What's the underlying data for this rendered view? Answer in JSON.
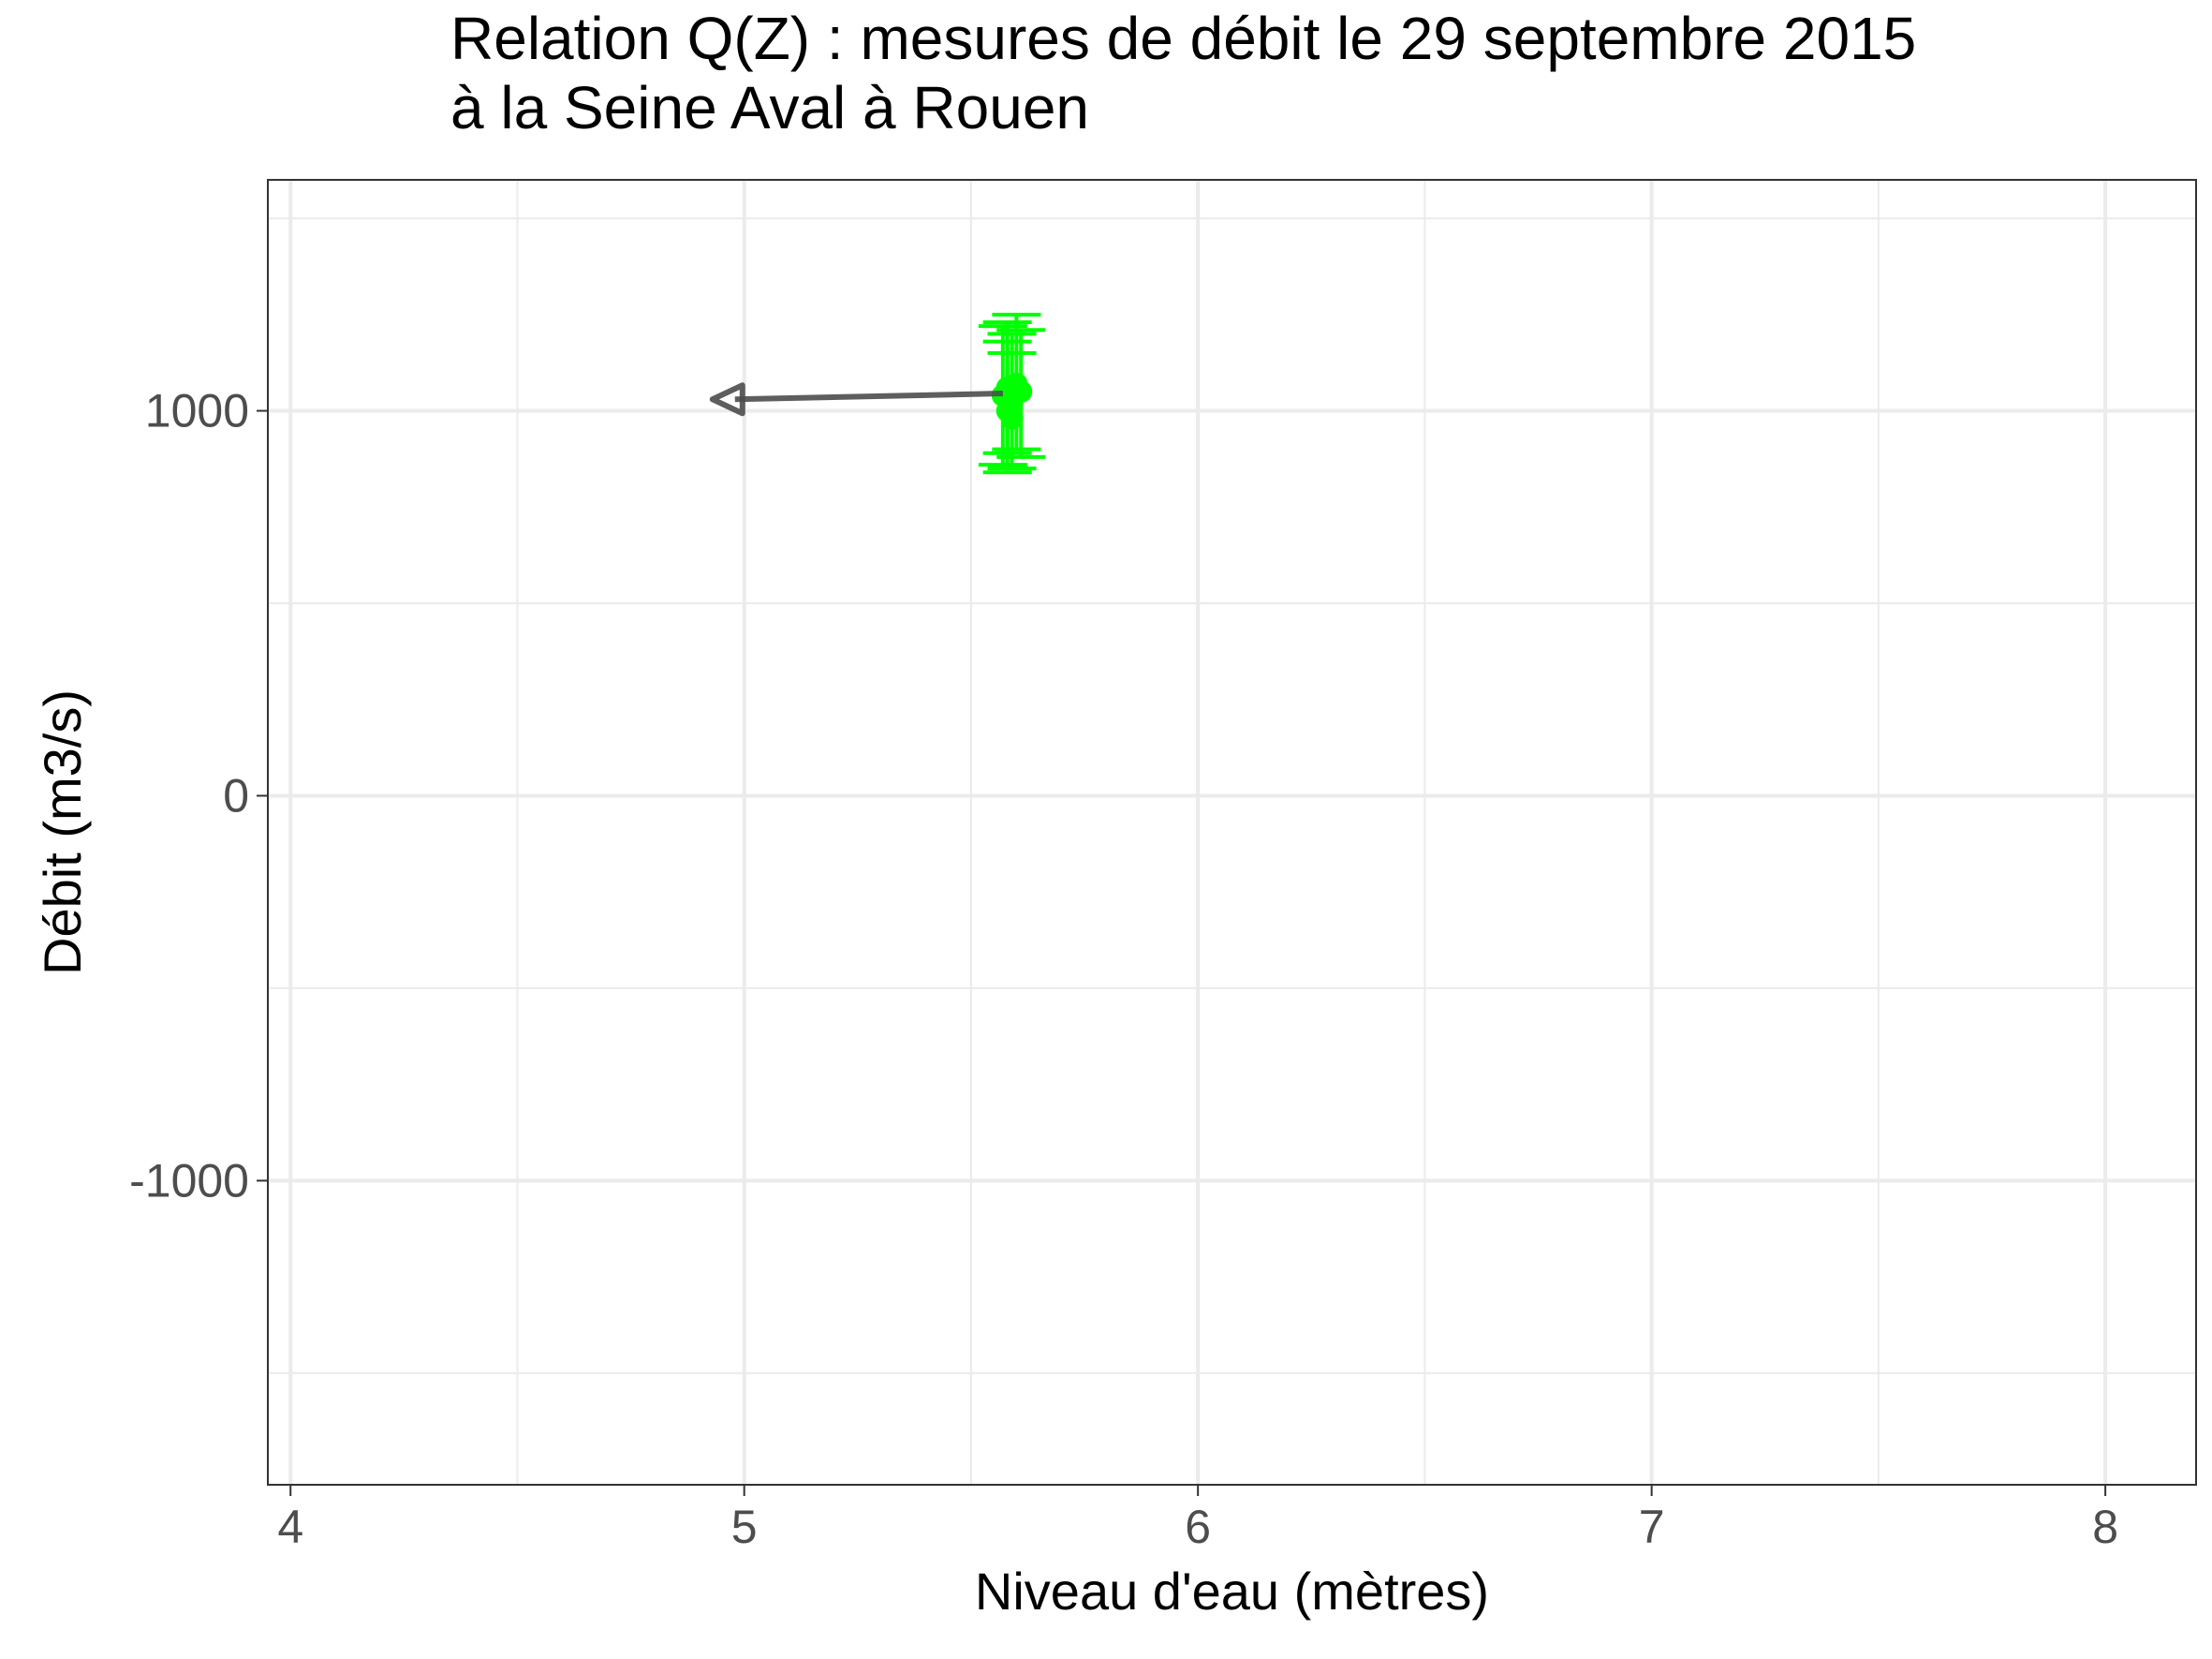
{
  "chart_data": {
    "type": "scatter",
    "title": "Relation Q(Z) : mesures de débit le 29 septembre 2015",
    "subtitle": "à la Seine Aval à Rouen",
    "xlabel": "Niveau d'eau (mètres)",
    "ylabel": "Débit (m3/s)",
    "xlim": [
      3.95,
      8.2
    ],
    "ylim": [
      -1790,
      1600
    ],
    "x_ticks": [
      4,
      5,
      6,
      7,
      8
    ],
    "x_tick_labels": [
      "4",
      "5",
      "6",
      "7",
      "8"
    ],
    "x_minor": [
      4.5,
      5.5,
      6.5,
      7.5
    ],
    "y_ticks": [
      1000,
      0,
      -1000
    ],
    "y_tick_labels": [
      "1000",
      "0",
      "-1000"
    ],
    "y_minor": [
      1500,
      500,
      -500,
      -1500
    ],
    "grid": true,
    "points_color": "#00ff00",
    "arrow_color": "#4d4d4d",
    "points": [
      {
        "x": 5.57,
        "y": 1040,
        "ymin": 860,
        "ymax": 1220
      },
      {
        "x": 5.6,
        "y": 1070,
        "ymin": 900,
        "ymax": 1250
      },
      {
        "x": 5.58,
        "y": 1000,
        "ymin": 840,
        "ymax": 1180
      },
      {
        "x": 5.59,
        "y": 1020,
        "ymin": 850,
        "ymax": 1200
      },
      {
        "x": 5.61,
        "y": 1050,
        "ymin": 880,
        "ymax": 1210
      },
      {
        "x": 5.58,
        "y": 1060,
        "ymin": 890,
        "ymax": 1230
      },
      {
        "x": 5.59,
        "y": 980,
        "ymin": 850,
        "ymax": 1150
      }
    ],
    "arrow": {
      "x_start": 5.57,
      "y_start": 1045,
      "x_end": 4.93,
      "y_end": 1030
    }
  }
}
